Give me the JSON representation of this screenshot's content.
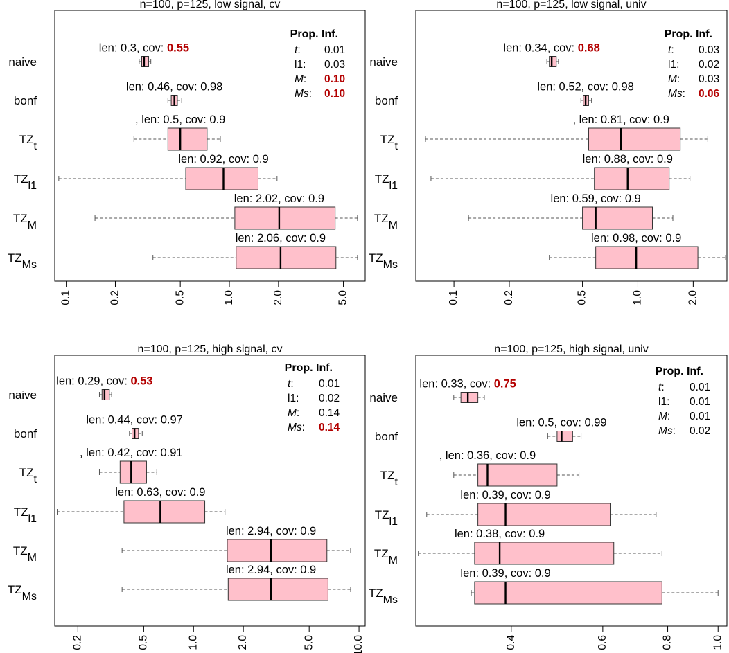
{
  "colors": {
    "box_fill": "#ffc0cb",
    "highlight": "#b30000",
    "whisker": "#555555",
    "frame": "#000000"
  },
  "chart_data": [
    {
      "type": "boxplot",
      "title": "n=100, p=125, low signal, cv",
      "x_scale": "log",
      "xlim": [
        0.085,
        6.8
      ],
      "x_ticks": [
        0.1,
        0.2,
        0.5,
        1.0,
        2.0,
        5.0
      ],
      "x_tick_labels": [
        "0.1",
        "0.2",
        "0.5",
        "1.0",
        "2.0",
        "5.0"
      ],
      "legend_title": "Prop. Inf.",
      "legend": [
        {
          "key": "t",
          "sep": ":",
          "value": "0.01",
          "key_italic": true,
          "highlight": false
        },
        {
          "key": "l1",
          "sep": ":",
          "value": "0.03",
          "key_italic": false,
          "highlight": false
        },
        {
          "key": "M",
          "sep": ":",
          "value": "0.10",
          "key_italic": true,
          "highlight": true
        },
        {
          "key": "Ms",
          "sep": ":",
          "value": "0.10",
          "key_italic": true,
          "highlight": true
        }
      ],
      "rows": [
        {
          "label": "naive",
          "sub": "",
          "annotation_prefix": "len: 0.3, cov: ",
          "cov": "0.55",
          "cov_highlight": true,
          "min": 0.28,
          "q1": 0.29,
          "median": 0.3,
          "q3": 0.32,
          "max": 0.33
        },
        {
          "label": "bonf",
          "sub": "",
          "annotation_prefix": "len: 0.46, cov: ",
          "cov": "0.98",
          "cov_highlight": false,
          "min": 0.42,
          "q1": 0.44,
          "median": 0.46,
          "q3": 0.48,
          "max": 0.51
        },
        {
          "label": "TZ",
          "sub": "t",
          "annotation_prefix": ", len: 0.5, cov: ",
          "cov": "0.9",
          "cov_highlight": false,
          "min": 0.26,
          "q1": 0.42,
          "median": 0.5,
          "q3": 0.73,
          "max": 0.88
        },
        {
          "label": "TZ",
          "sub": "l1",
          "annotation_prefix": "len: 0.92, cov: ",
          "cov": "0.9",
          "cov_highlight": false,
          "min": 0.09,
          "q1": 0.54,
          "median": 0.92,
          "q3": 1.5,
          "max": 1.96
        },
        {
          "label": "TZ",
          "sub": "M",
          "annotation_prefix": "len: 2.02, cov: ",
          "cov": "0.9",
          "cov_highlight": false,
          "min": 0.15,
          "q1": 1.08,
          "median": 2.02,
          "q3": 4.45,
          "max": 6.1
        },
        {
          "label": "TZ",
          "sub": "Ms",
          "annotation_prefix": "len: 2.06, cov: ",
          "cov": "0.9",
          "cov_highlight": false,
          "min": 0.34,
          "q1": 1.1,
          "median": 2.06,
          "q3": 4.5,
          "max": 6.1
        }
      ]
    },
    {
      "type": "boxplot",
      "title": "n=100, p=125, low signal, univ",
      "x_scale": "log",
      "xlim": [
        0.062,
        3.05
      ],
      "x_ticks": [
        0.1,
        0.2,
        0.5,
        1.0,
        2.0
      ],
      "x_tick_labels": [
        "0.1",
        "0.2",
        "0.5",
        "1.0",
        "2.0"
      ],
      "legend_title": "Prop. Inf.",
      "legend": [
        {
          "key": "t",
          "sep": ":",
          "value": "0.03",
          "key_italic": true,
          "highlight": false
        },
        {
          "key": "l1",
          "sep": ":",
          "value": "0.02",
          "key_italic": false,
          "highlight": false
        },
        {
          "key": "M",
          "sep": ":",
          "value": "0.03",
          "key_italic": true,
          "highlight": false
        },
        {
          "key": "Ms",
          "sep": ":",
          "value": "0.06",
          "key_italic": true,
          "highlight": true
        }
      ],
      "rows": [
        {
          "label": "naive",
          "sub": "",
          "annotation_prefix": "len: 0.34, cov: ",
          "cov": "0.68",
          "cov_highlight": true,
          "min": 0.32,
          "q1": 0.33,
          "median": 0.34,
          "q3": 0.36,
          "max": 0.37
        },
        {
          "label": "bonf",
          "sub": "",
          "annotation_prefix": "len: 0.52, cov: ",
          "cov": "0.98",
          "cov_highlight": false,
          "min": 0.49,
          "q1": 0.505,
          "median": 0.52,
          "q3": 0.54,
          "max": 0.56
        },
        {
          "label": "TZ",
          "sub": "t",
          "annotation_prefix": ", len: 0.81, cov: ",
          "cov": "0.9",
          "cov_highlight": false,
          "min": 0.07,
          "q1": 0.54,
          "median": 0.81,
          "q3": 1.7,
          "max": 2.4
        },
        {
          "label": "TZ",
          "sub": "l1",
          "annotation_prefix": "len: 0.88, cov: ",
          "cov": "0.9",
          "cov_highlight": false,
          "min": 0.075,
          "q1": 0.58,
          "median": 0.88,
          "q3": 1.48,
          "max": 1.92
        },
        {
          "label": "TZ",
          "sub": "M",
          "annotation_prefix": "len: 0.59, cov: ",
          "cov": "0.9",
          "cov_highlight": false,
          "min": 0.12,
          "q1": 0.5,
          "median": 0.59,
          "q3": 1.2,
          "max": 1.55
        },
        {
          "label": "TZ",
          "sub": "Ms",
          "annotation_prefix": "len: 0.98, cov: ",
          "cov": "0.9",
          "cov_highlight": false,
          "min": 0.33,
          "q1": 0.59,
          "median": 0.98,
          "q3": 2.12,
          "max": 3.0
        }
      ]
    },
    {
      "type": "boxplot",
      "title": "n=100, p=125, high signal, cv",
      "x_scale": "log",
      "xlim": [
        0.145,
        10.9
      ],
      "x_ticks": [
        0.2,
        0.5,
        1.0,
        2.0,
        5.0,
        10.0
      ],
      "x_tick_labels": [
        "0.2",
        "0.5",
        "1.0",
        "2.0",
        "5.0",
        "10.0"
      ],
      "legend_title": "Prop. Inf.",
      "legend": [
        {
          "key": "t",
          "sep": ":",
          "value": "0.01",
          "key_italic": true,
          "highlight": false
        },
        {
          "key": "l1",
          "sep": ":",
          "value": "0.02",
          "key_italic": false,
          "highlight": false
        },
        {
          "key": "M",
          "sep": ":",
          "value": "0.14",
          "key_italic": true,
          "highlight": false
        },
        {
          "key": "Ms",
          "sep": ":",
          "value": "0.14",
          "key_italic": true,
          "highlight": true
        }
      ],
      "rows": [
        {
          "label": "naive",
          "sub": "",
          "annotation_prefix": "len: 0.29, cov: ",
          "cov": "0.53",
          "cov_highlight": true,
          "min": 0.27,
          "q1": 0.28,
          "median": 0.29,
          "q3": 0.31,
          "max": 0.32
        },
        {
          "label": "bonf",
          "sub": "",
          "annotation_prefix": "len: 0.44, cov: ",
          "cov": "0.97",
          "cov_highlight": false,
          "min": 0.41,
          "q1": 0.425,
          "median": 0.44,
          "q3": 0.465,
          "max": 0.49
        },
        {
          "label": "TZ",
          "sub": "t",
          "annotation_prefix": ", len: 0.42, cov: ",
          "cov": "0.91",
          "cov_highlight": false,
          "min": 0.27,
          "q1": 0.36,
          "median": 0.42,
          "q3": 0.52,
          "max": 0.6
        },
        {
          "label": "TZ",
          "sub": "l1",
          "annotation_prefix": "len: 0.63, cov: ",
          "cov": "0.9",
          "cov_highlight": false,
          "min": 0.15,
          "q1": 0.38,
          "median": 0.63,
          "q3": 1.17,
          "max": 1.55
        },
        {
          "label": "TZ",
          "sub": "M",
          "annotation_prefix": "len: 2.94, cov: ",
          "cov": "0.9",
          "cov_highlight": false,
          "min": 0.37,
          "q1": 1.6,
          "median": 2.94,
          "q3": 6.4,
          "max": 8.9
        },
        {
          "label": "TZ",
          "sub": "Ms",
          "annotation_prefix": "len: 2.94, cov: ",
          "cov": "0.9",
          "cov_highlight": false,
          "min": 0.37,
          "q1": 1.62,
          "median": 2.94,
          "q3": 6.5,
          "max": 8.9
        }
      ]
    },
    {
      "type": "boxplot",
      "title": "n=100, p=125, high signal, univ",
      "x_scale": "log",
      "xlim": [
        0.262,
        1.04
      ],
      "x_ticks": [
        0.4,
        0.6,
        0.8,
        1.0
      ],
      "x_tick_labels": [
        "0.4",
        "0.6",
        "0.8",
        "1.0"
      ],
      "legend_title": "Prop. Inf.",
      "legend": [
        {
          "key": "t",
          "sep": ":",
          "value": "0.01",
          "key_italic": true,
          "highlight": false
        },
        {
          "key": "l1",
          "sep": ":",
          "value": "0.01",
          "key_italic": false,
          "highlight": false
        },
        {
          "key": "M",
          "sep": ":",
          "value": "0.01",
          "key_italic": true,
          "highlight": false
        },
        {
          "key": "Ms",
          "sep": ":",
          "value": "0.02",
          "key_italic": true,
          "highlight": false
        }
      ],
      "rows": [
        {
          "label": "naive",
          "sub": "",
          "annotation_prefix": "len: 0.33, cov: ",
          "cov": "0.75",
          "cov_highlight": true,
          "min": 0.31,
          "q1": 0.32,
          "median": 0.33,
          "q3": 0.345,
          "max": 0.355
        },
        {
          "label": "bonf",
          "sub": "",
          "annotation_prefix": "len: 0.5, cov: ",
          "cov": "0.99",
          "cov_highlight": false,
          "min": 0.47,
          "q1": 0.49,
          "median": 0.5,
          "q3": 0.525,
          "max": 0.545
        },
        {
          "label": "TZ",
          "sub": "t",
          "annotation_prefix": ", len: 0.36, cov: ",
          "cov": "0.9",
          "cov_highlight": false,
          "min": 0.31,
          "q1": 0.345,
          "median": 0.36,
          "q3": 0.49,
          "max": 0.54
        },
        {
          "label": "TZ",
          "sub": "l1",
          "annotation_prefix": "len: 0.39, cov: ",
          "cov": "0.9",
          "cov_highlight": false,
          "min": 0.275,
          "q1": 0.345,
          "median": 0.39,
          "q3": 0.62,
          "max": 0.76
        },
        {
          "label": "TZ",
          "sub": "M",
          "annotation_prefix": "len: 0.38, cov: ",
          "cov": "0.9",
          "cov_highlight": false,
          "min": 0.265,
          "q1": 0.34,
          "median": 0.38,
          "q3": 0.63,
          "max": 0.78
        },
        {
          "label": "TZ",
          "sub": "Ms",
          "annotation_prefix": "len: 0.39, cov: ",
          "cov": "0.9",
          "cov_highlight": false,
          "min": 0.335,
          "q1": 0.34,
          "median": 0.39,
          "q3": 0.78,
          "max": 1.0
        }
      ]
    }
  ]
}
